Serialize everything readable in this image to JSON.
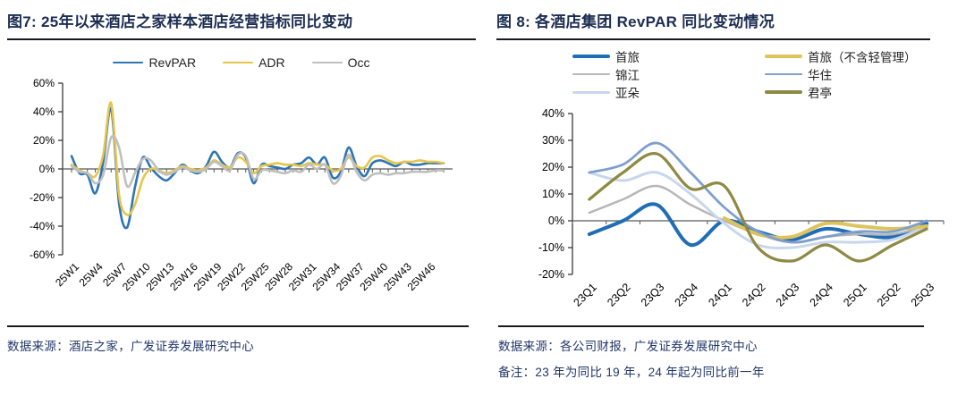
{
  "figure7": {
    "title": "图7: 25年以来酒店之家样本酒店经营指标同比变动",
    "source": "数据来源：酒店之家，广发证券发展研究中心"
  },
  "figure8": {
    "title": "图 8: 各酒店集团 RevPAR 同比变动情况",
    "source": "数据来源：各公司财报，广发证券发展研究中心",
    "note": "备注：23 年为同比 19 年，24 年起为同比前一年"
  },
  "chart_data": [
    {
      "type": "line",
      "title": "25年以来酒店之家样本酒店经营指标同比变动",
      "x_mode": "point",
      "categories": [
        "25W1",
        "25W2",
        "25W3",
        "25W4",
        "25W5",
        "25W6",
        "25W7",
        "25W8",
        "25W9",
        "25W10",
        "25W11",
        "25W12",
        "25W13",
        "25W14",
        "25W15",
        "25W16",
        "25W17",
        "25W18",
        "25W19",
        "25W20",
        "25W21",
        "25W22",
        "25W23",
        "25W24",
        "25W25",
        "25W26",
        "25W27",
        "25W28",
        "25W29",
        "25W30",
        "25W31",
        "25W32",
        "25W33",
        "25W34",
        "25W35",
        "25W36",
        "25W37",
        "25W38",
        "25W39",
        "25W40",
        "25W41",
        "25W42",
        "25W43",
        "25W44",
        "25W45",
        "25W46",
        "25W47",
        "25W48"
      ],
      "x_tick_labels": [
        "25W1",
        "25W4",
        "25W7",
        "25W10",
        "25W13",
        "25W16",
        "25W19",
        "25W22",
        "25W25",
        "25W28",
        "25W31",
        "25W34",
        "25W37",
        "25W40",
        "25W43",
        "25W46"
      ],
      "ylim": [
        -60,
        60
      ],
      "ytick_step": 20,
      "grid": false,
      "legend_position": "top",
      "series": [
        {
          "name": "RevPAR",
          "color": "#2e75b6",
          "width": 2.6,
          "values": [
            9,
            -3,
            -4,
            -17,
            5,
            42,
            -24,
            -41,
            -13,
            8,
            1,
            -5,
            -8,
            -3,
            3,
            -1,
            -3,
            2,
            12,
            5,
            1,
            11,
            8,
            -10,
            3,
            2,
            1,
            0,
            3,
            4,
            8,
            3,
            8,
            -6,
            -2,
            15,
            2,
            -5,
            4,
            6,
            4,
            2,
            5,
            3,
            3,
            4,
            4,
            4
          ]
        },
        {
          "name": "ADR",
          "color": "#e7c54a",
          "width": 2.6,
          "values": [
            3,
            -1,
            -3,
            -5,
            10,
            46,
            -18,
            -32,
            -25,
            -7,
            0,
            -1,
            -3,
            -1,
            2,
            0,
            -1,
            1,
            6,
            3,
            1,
            8,
            5,
            -3,
            2,
            3,
            4,
            3,
            3,
            2,
            4,
            3,
            3,
            -1,
            0,
            8,
            2,
            1,
            8,
            9,
            6,
            4,
            5,
            5,
            6,
            5,
            5,
            4
          ]
        },
        {
          "name": "Occ",
          "color": "#bfbfbf",
          "width": 2.6,
          "values": [
            2,
            -2,
            -3,
            -10,
            -4,
            22,
            15,
            -12,
            -3,
            7,
            6,
            -1,
            -4,
            -2,
            1,
            -1,
            -2,
            0,
            5,
            2,
            -1,
            10,
            9,
            -7,
            -1,
            -1,
            -2,
            -3,
            -1,
            -2,
            3,
            0,
            3,
            -10,
            -5,
            10,
            -2,
            -8,
            -4,
            -3,
            -4,
            -3,
            -3,
            -2,
            -2,
            -2,
            -1,
            -1
          ]
        }
      ]
    },
    {
      "type": "line",
      "title": "各酒店集团 RevPAR 同比变动情况",
      "x_mode": "band",
      "categories": [
        "23Q1",
        "23Q2",
        "23Q3",
        "23Q4",
        "24Q1",
        "24Q2",
        "24Q3",
        "24Q4",
        "25Q1",
        "25Q2",
        "25Q3"
      ],
      "ylim": [
        -20,
        40
      ],
      "ytick_step": 10,
      "grid": false,
      "legend_position": "top",
      "legend_columns": [
        [
          "首旅",
          "锦江",
          "亚朵"
        ],
        [
          "首旅（不含轻管理）",
          "华住",
          "君亭"
        ]
      ],
      "series": [
        {
          "name": "首旅",
          "color": "#1f6db6",
          "width": 4,
          "values": [
            -5,
            0,
            6,
            -9,
            0,
            -4,
            -7,
            -3,
            -5,
            -6,
            -1
          ]
        },
        {
          "name": "锦江",
          "color": "#b7b7b7",
          "width": 2.5,
          "values": [
            3,
            8,
            13,
            6,
            0,
            -5,
            -8,
            -6,
            -5,
            -5,
            -2
          ]
        },
        {
          "name": "亚朵",
          "color": "#c8d7eb",
          "width": 3,
          "values": [
            18,
            15,
            18,
            10,
            -1,
            -9,
            -10,
            -8,
            -8,
            -7,
            -2
          ]
        },
        {
          "name": "首旅（不含轻管理）",
          "color": "#ddc45c",
          "width": 4,
          "values": [
            null,
            null,
            null,
            null,
            1,
            -5,
            -6,
            -1,
            -2,
            -3,
            -2
          ]
        },
        {
          "name": "华住",
          "color": "#7e9fce",
          "width": 2.8,
          "values": [
            18,
            21,
            29,
            18,
            5,
            -4,
            -8,
            -6,
            -4,
            -4,
            0
          ]
        },
        {
          "name": "君亭",
          "color": "#8e8a43",
          "width": 3.2,
          "values": [
            8,
            18,
            25,
            12,
            13,
            -10,
            -15,
            -9,
            -15,
            -9,
            -3
          ]
        }
      ]
    }
  ]
}
